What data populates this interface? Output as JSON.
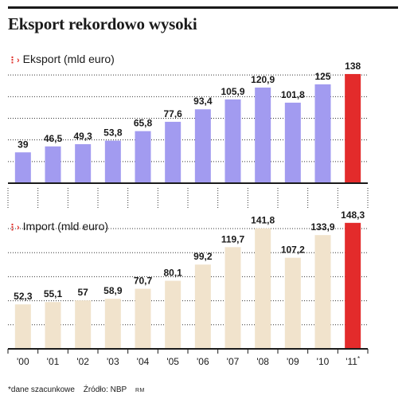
{
  "title": "Eksport rekordowo wysoki",
  "colors": {
    "export_bar": "#a29bf0",
    "import_bar": "#f1e3cc",
    "highlight_bar": "#e32b2b",
    "axis": "#1a1a1a",
    "grid": "#333333"
  },
  "marker_glyph": "⋮›",
  "chart_data": {
    "type": "bar",
    "categories": [
      "'00",
      "'01",
      "'02",
      "'03",
      "'04",
      "'05",
      "'06",
      "'07",
      "'08",
      "'09",
      "'10",
      "'11"
    ],
    "category_suffix_last": "*",
    "series": [
      {
        "name": "Eksport (mld euro)",
        "values": [
          39,
          46.5,
          49.3,
          53.8,
          65.8,
          77.6,
          93.4,
          105.9,
          120.9,
          101.8,
          125,
          138
        ],
        "labels": [
          "39",
          "46,5",
          "49,3",
          "53,8",
          "65,8",
          "77,6",
          "93,4",
          "105,9",
          "120,9",
          "101,8",
          "125",
          "138"
        ],
        "color": "#a29bf0"
      },
      {
        "name": "Import (mld euro)",
        "values": [
          52.3,
          55.1,
          57,
          58.9,
          70.7,
          80.1,
          99.2,
          119.7,
          141.8,
          107.2,
          133.9,
          148.3
        ],
        "labels": [
          "52,3",
          "55,1",
          "57",
          "58,9",
          "70,7",
          "80,1",
          "99,2",
          "119,7",
          "141,8",
          "107,2",
          "133,9",
          "148,3"
        ],
        "color": "#f1e3cc"
      }
    ],
    "highlight_index": 11,
    "ylim_export": [
      0,
      145
    ],
    "ylim_import": [
      0,
      150
    ],
    "grid": true
  },
  "footnote": {
    "estimate": "*dane szacunkowe",
    "source": "Źródło: NBP",
    "author": "RM"
  }
}
